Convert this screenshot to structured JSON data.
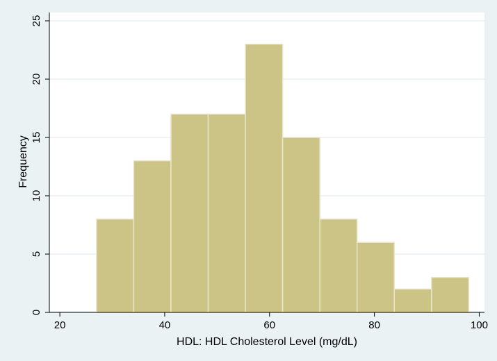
{
  "chart_data": {
    "type": "bar",
    "title": "",
    "xlabel": "HDL: HDL Cholesterol Level (mg/dL)",
    "ylabel": "Frequency",
    "xlim": [
      18,
      101
    ],
    "ylim": [
      0,
      25
    ],
    "xticks": [
      20,
      40,
      60,
      80,
      100
    ],
    "yticks": [
      0,
      5,
      10,
      15,
      20,
      25
    ],
    "grid": true,
    "bins": [
      {
        "start": 27.0,
        "end": 34.1,
        "value": 8
      },
      {
        "start": 34.1,
        "end": 41.2,
        "value": 13
      },
      {
        "start": 41.2,
        "end": 48.3,
        "value": 17
      },
      {
        "start": 48.3,
        "end": 55.4,
        "value": 17
      },
      {
        "start": 55.4,
        "end": 62.5,
        "value": 23
      },
      {
        "start": 62.5,
        "end": 69.6,
        "value": 15
      },
      {
        "start": 69.6,
        "end": 76.7,
        "value": 8
      },
      {
        "start": 76.7,
        "end": 83.8,
        "value": 6
      },
      {
        "start": 83.8,
        "end": 90.9,
        "value": 2
      },
      {
        "start": 90.9,
        "end": 98.0,
        "value": 3
      }
    ],
    "colors": {
      "bar_fill": "#ccc386",
      "bar_edge": "#e9e6c8",
      "plot_bg": "#ffffff",
      "grid": "#e6eef0",
      "axis": "#000000"
    }
  }
}
